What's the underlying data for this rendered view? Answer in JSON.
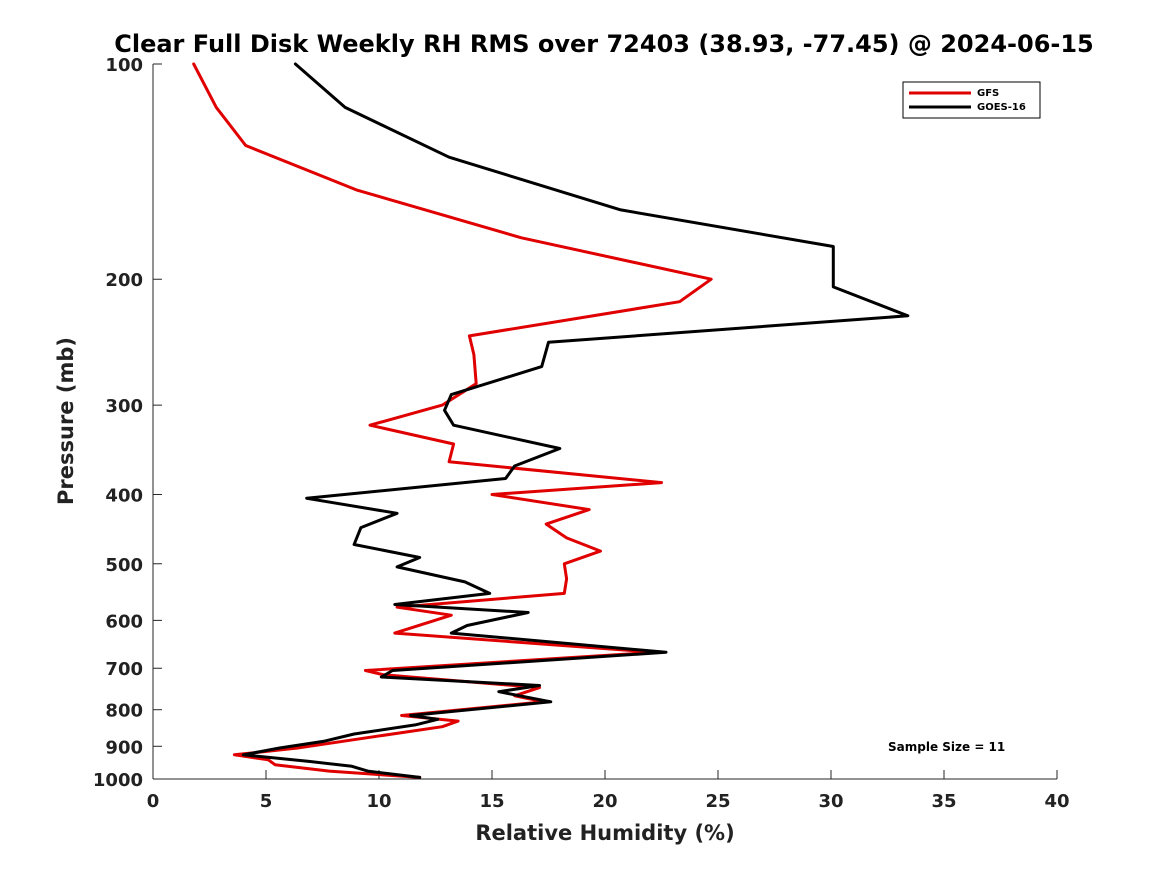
{
  "chart_data": {
    "type": "line",
    "title": "Clear Full Disk Weekly RH RMS over 72403 (38.93, -77.45) @ 2024-06-15",
    "xlabel": "Relative Humidity (%)",
    "ylabel": "Pressure (mb)",
    "xlim": [
      0,
      40
    ],
    "ylim": [
      100,
      1000
    ],
    "yscale": "log",
    "yreversed": true,
    "xticks": [
      "0",
      "5",
      "10",
      "15",
      "20",
      "25",
      "30",
      "35",
      "40"
    ],
    "yticks": [
      "100",
      "200",
      "300",
      "400",
      "500",
      "600",
      "700",
      "800",
      "900",
      "1000"
    ],
    "grid": false,
    "legend_position": "top-right",
    "annotation": "Sample Size = 11",
    "series": [
      {
        "name": "GFS",
        "color": "#e00000",
        "points": [
          [
            1.8,
            100
          ],
          [
            2.8,
            115
          ],
          [
            4.1,
            130
          ],
          [
            9.0,
            150
          ],
          [
            16.3,
            175
          ],
          [
            24.7,
            200
          ],
          [
            23.3,
            215
          ],
          [
            14.0,
            240
          ],
          [
            14.2,
            255
          ],
          [
            14.3,
            280
          ],
          [
            12.8,
            300
          ],
          [
            9.6,
            320
          ],
          [
            13.3,
            340
          ],
          [
            13.1,
            360
          ],
          [
            22.5,
            385
          ],
          [
            15.0,
            400
          ],
          [
            19.3,
            420
          ],
          [
            17.4,
            440
          ],
          [
            18.3,
            460
          ],
          [
            19.8,
            480
          ],
          [
            18.2,
            500
          ],
          [
            18.3,
            525
          ],
          [
            18.2,
            550
          ],
          [
            10.8,
            575
          ],
          [
            13.2,
            590
          ],
          [
            10.7,
            625
          ],
          [
            22.2,
            665
          ],
          [
            9.4,
            705
          ],
          [
            10.2,
            715
          ],
          [
            17.1,
            745
          ],
          [
            16.0,
            765
          ],
          [
            17.3,
            780
          ],
          [
            11.0,
            815
          ],
          [
            13.5,
            830
          ],
          [
            12.8,
            845
          ],
          [
            9.0,
            880
          ],
          [
            6.4,
            905
          ],
          [
            3.6,
            925
          ],
          [
            5.1,
            940
          ],
          [
            5.4,
            955
          ],
          [
            7.8,
            975
          ],
          [
            11.8,
            995
          ]
        ]
      },
      {
        "name": "GOES-16",
        "color": "#000000",
        "points": [
          [
            6.3,
            100
          ],
          [
            8.5,
            115
          ],
          [
            13.1,
            135
          ],
          [
            20.7,
            160
          ],
          [
            30.1,
            180
          ],
          [
            30.1,
            205
          ],
          [
            33.4,
            225
          ],
          [
            17.5,
            245
          ],
          [
            17.2,
            265
          ],
          [
            13.2,
            290
          ],
          [
            12.9,
            305
          ],
          [
            13.3,
            320
          ],
          [
            18.0,
            345
          ],
          [
            16.0,
            365
          ],
          [
            15.6,
            380
          ],
          [
            6.8,
            405
          ],
          [
            10.8,
            425
          ],
          [
            9.2,
            445
          ],
          [
            8.9,
            470
          ],
          [
            11.8,
            490
          ],
          [
            10.8,
            505
          ],
          [
            13.8,
            530
          ],
          [
            14.9,
            550
          ],
          [
            10.7,
            570
          ],
          [
            16.6,
            585
          ],
          [
            13.9,
            610
          ],
          [
            13.2,
            625
          ],
          [
            22.7,
            665
          ],
          [
            10.6,
            705
          ],
          [
            10.1,
            720
          ],
          [
            17.1,
            740
          ],
          [
            15.3,
            755
          ],
          [
            17.6,
            780
          ],
          [
            11.4,
            815
          ],
          [
            12.6,
            825
          ],
          [
            11.6,
            840
          ],
          [
            8.9,
            865
          ],
          [
            7.6,
            885
          ],
          [
            5.6,
            905
          ],
          [
            4.0,
            925
          ],
          [
            6.9,
            945
          ],
          [
            8.8,
            960
          ],
          [
            9.5,
            975
          ],
          [
            11.8,
            995
          ]
        ]
      }
    ]
  }
}
